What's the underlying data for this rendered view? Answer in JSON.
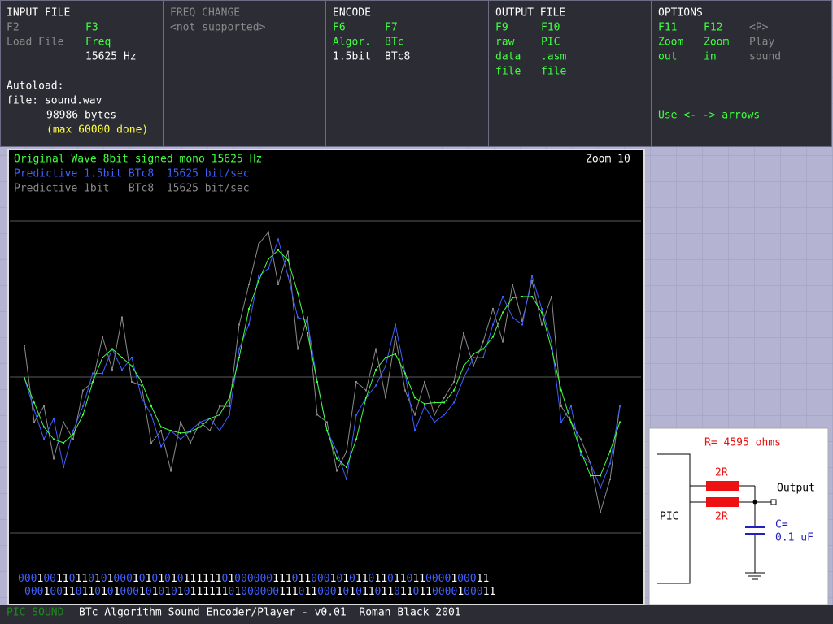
{
  "input_file": {
    "title": "INPUT FILE",
    "f2": "F2",
    "f3": "F3",
    "load_file": "Load File",
    "freq": "Freq",
    "freq_value": "15625 Hz",
    "autoload": "Autoload:",
    "file": "file: sound.wav",
    "bytes": "98986 bytes",
    "max": "(max 60000 done)"
  },
  "freq_change": {
    "title": "FREQ CHANGE",
    "note": "<not supported>"
  },
  "encode": {
    "title": "ENCODE",
    "f6": "F6",
    "f7": "F7",
    "algor": "Algor.",
    "btc": "BTc",
    "bits": "1.5bit",
    "btc8": "BTc8"
  },
  "output_file": {
    "title": "OUTPUT FILE",
    "f9": "F9",
    "f10": "F10",
    "raw": "raw",
    "pic": "PIC",
    "data": "data",
    "asm": ".asm",
    "file_a": "file",
    "file_b": "file"
  },
  "options": {
    "title": "OPTIONS",
    "f11": "F11",
    "f12": "F12",
    "p": "<P>",
    "zoom_a": "Zoom",
    "zoom_b": "Zoom",
    "play": "Play",
    "out": "out",
    "in": "in",
    "sound": "sound",
    "hint": "Use <- -> arrows"
  },
  "wave": {
    "zoom": "Zoom 10",
    "series": [
      {
        "name": "Predictive 1bit   BTc8  15625 bit/sec",
        "color": "#8a8a8a",
        "values": [
          26,
          -37,
          -24,
          -67,
          -37,
          -51,
          -11,
          -4,
          33,
          6,
          49,
          -4,
          -7,
          -54,
          -44,
          -77,
          -37,
          -54,
          -37,
          -44,
          -24,
          -24,
          43,
          76,
          109,
          119,
          76,
          103,
          23,
          49,
          -31,
          -37,
          -77,
          -61,
          -4,
          -11,
          23,
          -17,
          33,
          -11,
          -31,
          -4,
          -31,
          -17,
          -4,
          36,
          9,
          29,
          56,
          29,
          76,
          46,
          79,
          43,
          66,
          -24,
          -37,
          -51,
          -71,
          -111,
          -84,
          -24
        ]
      },
      {
        "name": "Predictive 1.5bit BTc8  15625 bit/sec",
        "color": "#3f5fff",
        "values": [
          -1,
          -27,
          -51,
          -34,
          -74,
          -44,
          -24,
          3,
          3,
          23,
          6,
          16,
          -17,
          -31,
          -57,
          -44,
          -51,
          -44,
          -37,
          -34,
          -44,
          -31,
          23,
          43,
          83,
          89,
          113,
          83,
          49,
          46,
          -4,
          -44,
          -61,
          -84,
          -31,
          -17,
          -7,
          9,
          43,
          3,
          -44,
          -24,
          -37,
          -31,
          -21,
          -1,
          16,
          16,
          43,
          66,
          49,
          43,
          83,
          56,
          29,
          -37,
          -24,
          -64,
          -71,
          -91,
          -71,
          -24
        ]
      },
      {
        "name": "Original Wave 8bit signed mono 15625 Hz",
        "color": "#40ff40",
        "values": [
          -1,
          -21,
          -41,
          -51,
          -54,
          -47,
          -31,
          -4,
          16,
          23,
          16,
          9,
          -4,
          -24,
          -41,
          -44,
          -46,
          -45,
          -41,
          -34,
          -31,
          -17,
          16,
          56,
          79,
          97,
          104,
          96,
          69,
          36,
          -4,
          -44,
          -67,
          -74,
          -51,
          -17,
          6,
          16,
          19,
          3,
          -17,
          -22,
          -21,
          -21,
          -11,
          9,
          19,
          23,
          33,
          53,
          65,
          66,
          66,
          53,
          23,
          -11,
          -37,
          -61,
          -81,
          -81,
          -61,
          -37
        ]
      }
    ],
    "bits": [
      "00010011011010100010101010111111010000001110110001010110110110110000100011",
      "00010011011010100010101010111111010000001110110001010110110110110000100011"
    ]
  },
  "circuit": {
    "r": "R= 4595 ohms",
    "r_top": "2R",
    "r_bottom": "2R",
    "pic": "PIC",
    "output": "Output",
    "c": "C=",
    "c_value": "0.1 uF"
  },
  "status": {
    "mode": "PIC SOUND",
    "text": "BTc Algorithm Sound Encoder/Player - v0.01  Roman Black 2001"
  }
}
